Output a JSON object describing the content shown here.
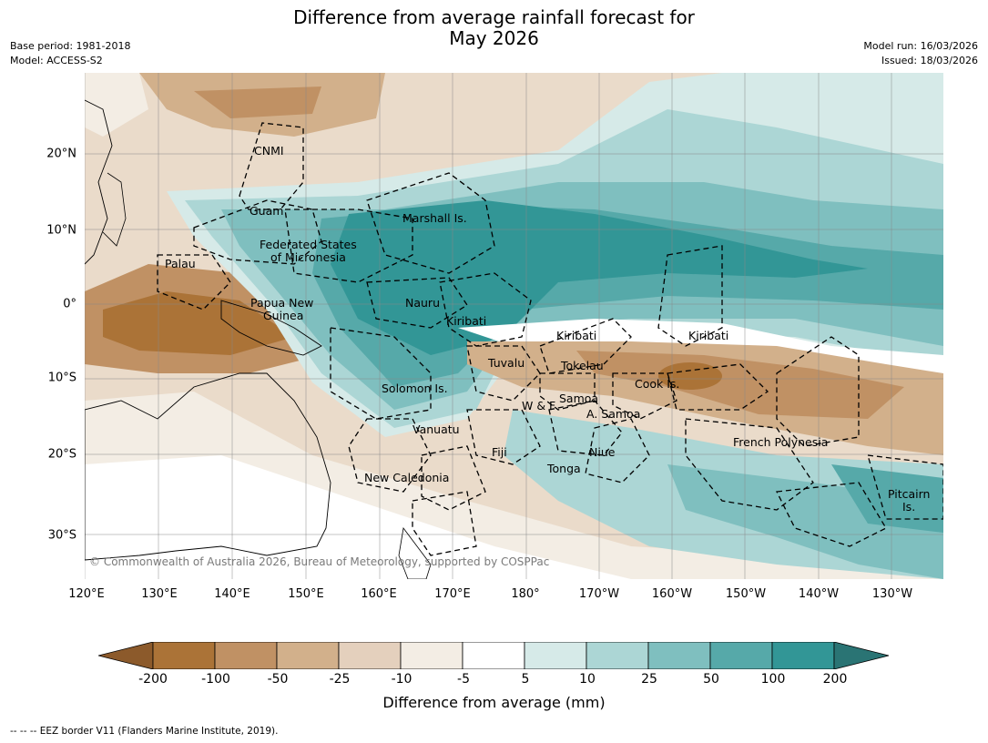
{
  "title_line1": "Difference from average rainfall forecast for",
  "title_line2": "May 2026",
  "base_period": "Base period: 1981-2018",
  "model": "Model: ACCESS-S2",
  "model_run": "Model run: 16/03/2026",
  "issued": "Issued: 18/03/2026",
  "copyright": "© Commonwealth of Australia 2026, Bureau of Meteorology, supported by COSPPac",
  "lon_labels": [
    "120°E",
    "130°E",
    "140°E",
    "150°E",
    "160°E",
    "170°E",
    "180°",
    "170°W",
    "160°W",
    "150°W",
    "140°W",
    "130°W"
  ],
  "lat_labels": [
    "20°N",
    "10°N",
    "0°",
    "10°S",
    "20°S",
    "30°S"
  ],
  "regions": {
    "cnmi": "CNMI",
    "guam": "Guam",
    "marshall": "Marshall Is.",
    "fsm_1": "Federated States",
    "fsm_2": "of Micronesia",
    "palau": "Palau",
    "png_1": "Papua New",
    "png_2": "Guinea",
    "nauru": "Nauru",
    "kiribati_w": "Kiribati",
    "kiribati_c": "Kiribati",
    "kiribati_e": "Kiribati",
    "tuvalu": "Tuvalu",
    "tokelau": "Tokelau",
    "cook": "Cook Is.",
    "solomon": "Solomon Is.",
    "samoa": "Samoa",
    "wf": "W & F",
    "asamoa": "A. Samoa",
    "vanuatu": "Vanuatu",
    "fiji": "Fiji",
    "niue": "Niue",
    "tonga": "Tonga",
    "new_caledonia": "New Caledonia",
    "french_polynesia": "French Polynesia",
    "pitcairn_1": "Pitcairn",
    "pitcairn_2": "Is."
  },
  "legend": {
    "ticks": [
      "-200",
      "-100",
      "-50",
      "-25",
      "-10",
      "-5",
      "5",
      "10",
      "25",
      "50",
      "100",
      "200"
    ],
    "colors": [
      "#8c5a2b",
      "#ab7337",
      "#c09164",
      "#d2b08b",
      "#e4d0bd",
      "#f3ede4",
      "#ffffff",
      "#d6eae8",
      "#acd6d5",
      "#7fbfbf",
      "#56a9a9",
      "#329696",
      "#2a7474"
    ],
    "title": "Difference from average (mm)"
  },
  "footer": "--  --  -- EEZ border V11 (Flanders Marine Institute, 2019)."
}
